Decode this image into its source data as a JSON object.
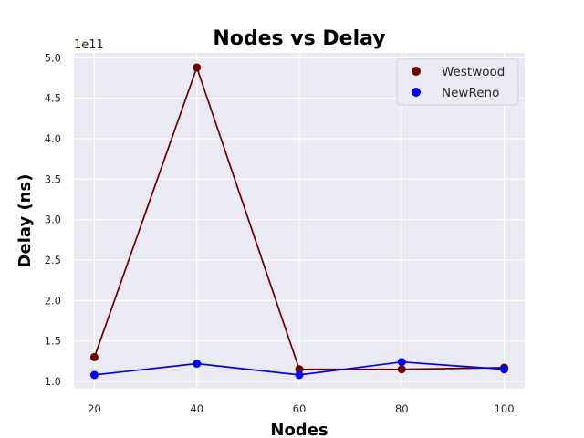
{
  "chart_data": {
    "type": "line",
    "title": "Nodes vs Delay",
    "xlabel": "Nodes",
    "ylabel": "Delay (ns)",
    "y_offset_label": "1e11",
    "x": [
      20,
      40,
      60,
      80,
      100
    ],
    "xticks": [
      "20",
      "40",
      "60",
      "80",
      "100"
    ],
    "yticks": [
      "1.0",
      "1.5",
      "2.0",
      "2.5",
      "3.0",
      "3.5",
      "4.0",
      "4.5",
      "5.0"
    ],
    "xlim": [
      16,
      104
    ],
    "ylim": [
      0.91,
      5.06
    ],
    "y_scale_factor": "1e11",
    "grid": true,
    "legend_position": "top-right",
    "series": [
      {
        "name": "Westwood",
        "color": "#6b0000",
        "values": [
          1.3,
          4.88,
          1.15,
          1.15,
          1.17
        ]
      },
      {
        "name": "NewReno",
        "color": "#0000ee",
        "values": [
          1.08,
          1.22,
          1.08,
          1.24,
          1.15
        ]
      }
    ]
  }
}
